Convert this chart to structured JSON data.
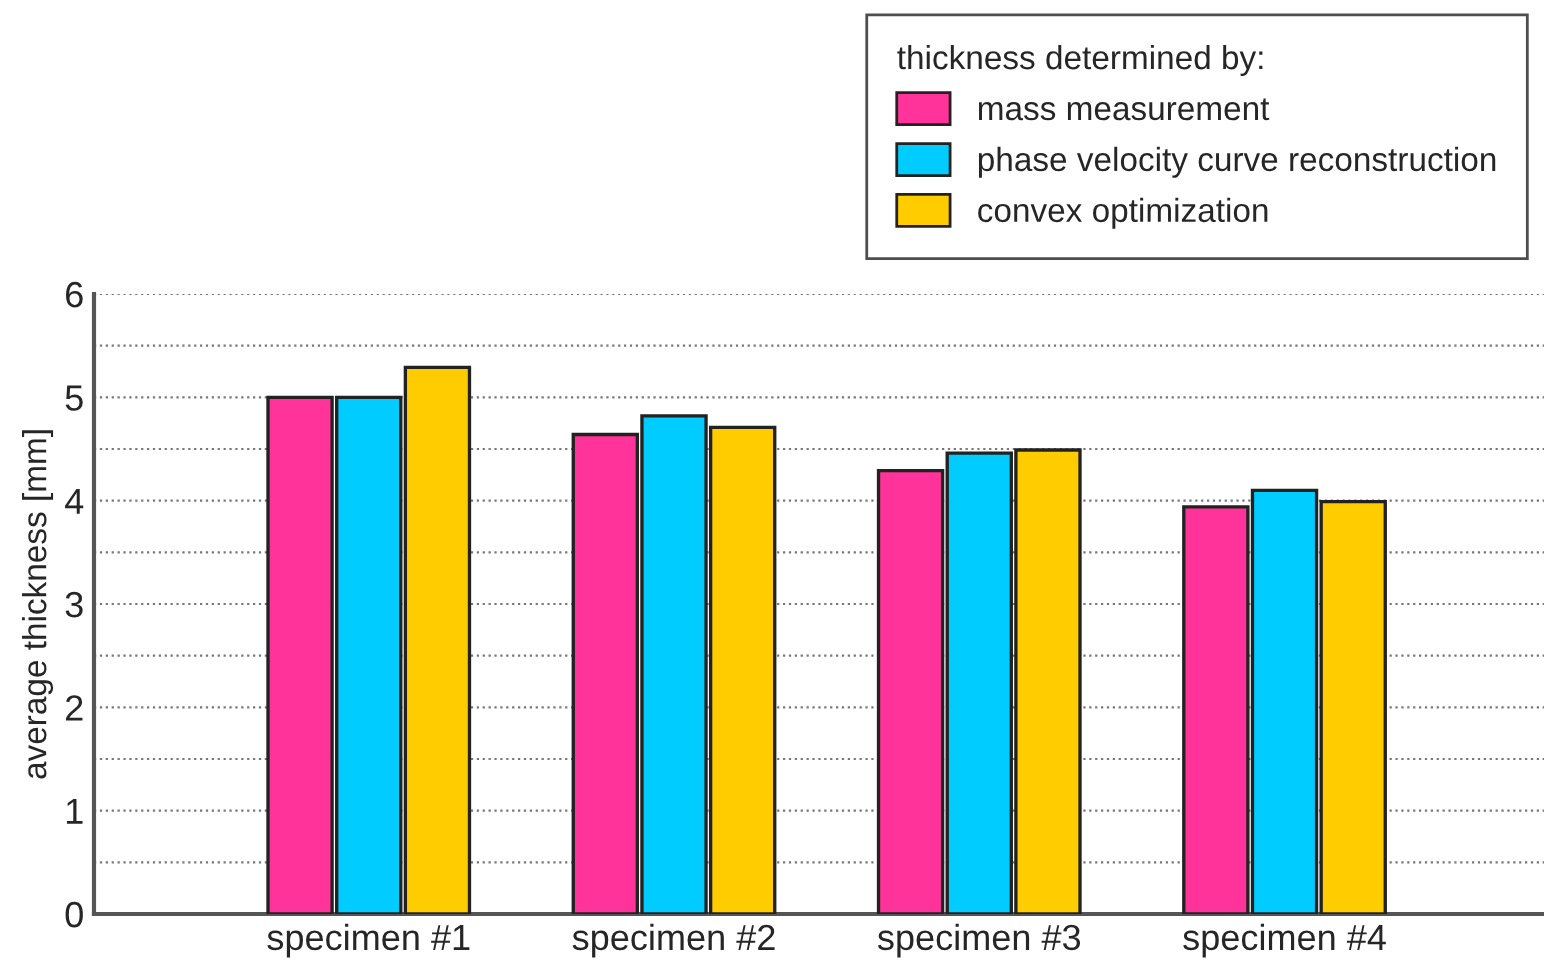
{
  "chart_data": {
    "type": "bar",
    "ylabel": "average thickness [mm]",
    "legend_title": "thickness determined by:",
    "categories": [
      "specimen #1",
      "specimen #2",
      "specimen #3",
      "specimen #4"
    ],
    "series": [
      {
        "name": "mass measurement",
        "color": "#ff3399",
        "values": [
          5.0,
          4.64,
          4.29,
          3.94
        ]
      },
      {
        "name": "phase velocity curve reconstruction",
        "color": "#00ccff",
        "values": [
          5.0,
          4.82,
          4.46,
          4.1
        ]
      },
      {
        "name": "convex optimization",
        "color": "#ffcc00",
        "values": [
          5.29,
          4.71,
          4.49,
          3.99
        ]
      }
    ],
    "ylim": [
      0,
      6
    ],
    "yticks": [
      0,
      {
        "value": 0.5,
        "label": null
      },
      1,
      {
        "value": 1.5,
        "label": null
      },
      2,
      {
        "value": 2.5,
        "label": null
      },
      3,
      {
        "value": 3.5,
        "label": null
      },
      4,
      {
        "value": 4.5,
        "label": null
      },
      5,
      {
        "value": 5.5,
        "label": null
      },
      6
    ],
    "grid": "y",
    "legend": "top right"
  }
}
